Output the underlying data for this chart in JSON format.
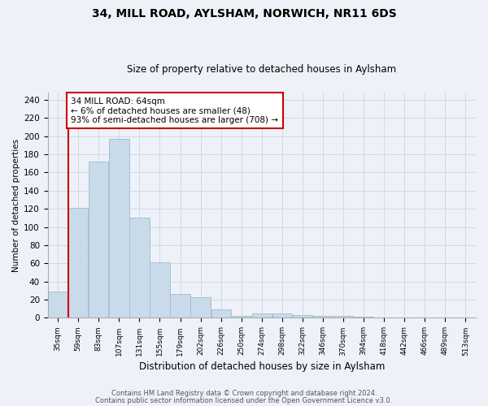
{
  "title_line1": "34, MILL ROAD, AYLSHAM, NORWICH, NR11 6DS",
  "title_line2": "Size of property relative to detached houses in Aylsham",
  "xlabel": "Distribution of detached houses by size in Aylsham",
  "ylabel": "Number of detached properties",
  "bar_color": "#c9daea",
  "bar_edge_color": "#a0bcd0",
  "annotation_text_line1": "34 MILL ROAD: 64sqm",
  "annotation_text_line2": "← 6% of detached houses are smaller (48)",
  "annotation_text_line3": "93% of semi-detached houses are larger (708) →",
  "annotation_box_color": "#ffffff",
  "annotation_border_color": "#cc0000",
  "categories": [
    "35sqm",
    "59sqm",
    "83sqm",
    "107sqm",
    "131sqm",
    "155sqm",
    "179sqm",
    "202sqm",
    "226sqm",
    "250sqm",
    "274sqm",
    "298sqm",
    "322sqm",
    "346sqm",
    "370sqm",
    "394sqm",
    "418sqm",
    "442sqm",
    "466sqm",
    "489sqm",
    "513sqm"
  ],
  "values": [
    29,
    121,
    172,
    197,
    110,
    61,
    26,
    23,
    9,
    2,
    5,
    5,
    3,
    2,
    2,
    1,
    0,
    0,
    0,
    0,
    0
  ],
  "ylim": [
    0,
    248
  ],
  "yticks": [
    0,
    20,
    40,
    60,
    80,
    100,
    120,
    140,
    160,
    180,
    200,
    220,
    240
  ],
  "grid_color": "#d0d8e8",
  "bg_color": "#eef2f8",
  "footer_line1": "Contains HM Land Registry data © Crown copyright and database right 2024.",
  "footer_line2": "Contains public sector information licensed under the Open Government Licence v3.0."
}
